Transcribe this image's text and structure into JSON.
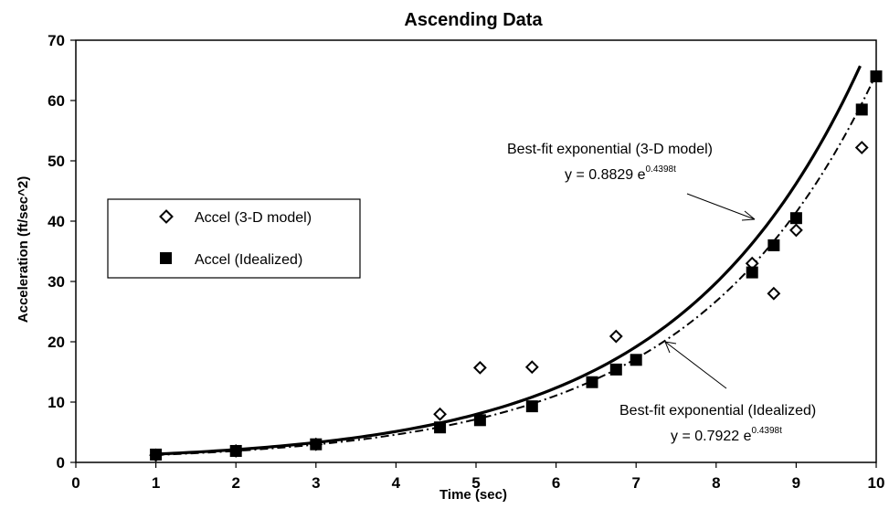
{
  "chart_data": {
    "type": "scatter",
    "title": "Ascending Data",
    "xlabel": "Time (sec)",
    "ylabel": "Acceleration (ft/sec^2)",
    "xlim": [
      0,
      10
    ],
    "ylim": [
      0,
      70
    ],
    "x_ticks": [
      "0",
      "1",
      "2",
      "3",
      "4",
      "5",
      "6",
      "7",
      "8",
      "9",
      "10"
    ],
    "y_ticks": [
      "0",
      "10",
      "20",
      "30",
      "40",
      "50",
      "60",
      "70"
    ],
    "grid": false,
    "legend_position": "left",
    "series": [
      {
        "name": "Accel (3-D model)",
        "marker": "open-diamond",
        "points": [
          [
            1,
            1.2
          ],
          [
            2,
            1.9
          ],
          [
            3,
            3.0
          ],
          [
            4.55,
            8.0
          ],
          [
            5.05,
            15.7
          ],
          [
            5.7,
            15.8
          ],
          [
            6.75,
            20.9
          ],
          [
            8.45,
            33.0
          ],
          [
            8.72,
            28.0
          ],
          [
            9.0,
            38.5
          ],
          [
            9.82,
            52.2
          ]
        ]
      },
      {
        "name": "Accel (Idealized)",
        "marker": "filled-square",
        "points": [
          [
            1,
            1.3
          ],
          [
            2,
            1.9
          ],
          [
            3,
            3.0
          ],
          [
            4.55,
            5.8
          ],
          [
            5.05,
            7.0
          ],
          [
            5.7,
            9.3
          ],
          [
            6.45,
            13.3
          ],
          [
            6.75,
            15.4
          ],
          [
            7.0,
            17.0
          ],
          [
            8.45,
            31.5
          ],
          [
            8.72,
            36.0
          ],
          [
            9.0,
            40.5
          ],
          [
            9.82,
            58.5
          ],
          [
            10.0,
            64.0
          ]
        ]
      }
    ],
    "trendlines": [
      {
        "label": "Best-fit exponential (3-D model)",
        "equation_prefix": "y = 0.8829 e",
        "equation_exponent": "0.4398t",
        "a": 0.8829,
        "b": 0.4398,
        "x_range": [
          1,
          9.8
        ],
        "style": "solid"
      },
      {
        "label": "Best-fit exponential (Idealized)",
        "equation_prefix": "y = 0.7922 e",
        "equation_exponent": "0.4398t",
        "a": 0.7922,
        "b": 0.4398,
        "x_range": [
          1,
          10
        ],
        "style": "dash-dot"
      }
    ]
  }
}
